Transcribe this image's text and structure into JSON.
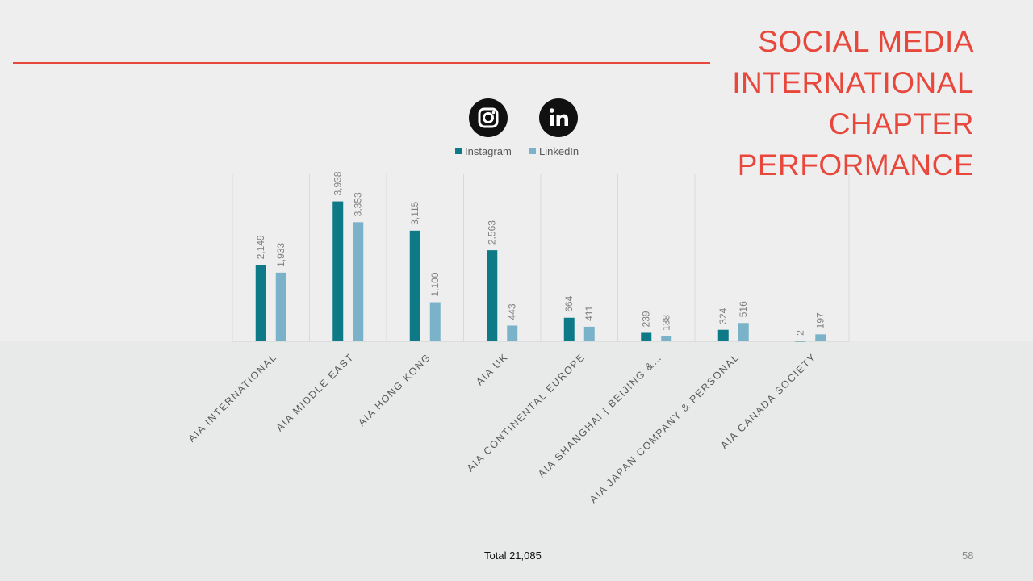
{
  "slide": {
    "title_lines": [
      "SOCIAL MEDIA",
      "INTERNATIONAL",
      "CHAPTER",
      "PERFORMANCE"
    ],
    "total_text": "Total 21,085",
    "page_number": "58",
    "accent_color": "#e8473c"
  },
  "icons": [
    "instagram-icon",
    "linkedin-icon"
  ],
  "chart_data": {
    "type": "bar",
    "categories": [
      "AIA INTERNATIONAL",
      "AIA MIDDLE EAST",
      "AIA HONG KONG",
      "AIA UK",
      "AIA CONTINENTAL EUROPE",
      "AIA SHANGHAI | BEIJING &…",
      "AIA JAPAN COMPANY & PERSONAL",
      "AIA CANADA SOCIETY"
    ],
    "series": [
      {
        "name": "Instagram",
        "color": "#0e7a87",
        "values": [
          2149,
          3938,
          3115,
          2563,
          664,
          239,
          324,
          2
        ]
      },
      {
        "name": "LinkedIn",
        "color": "#7ab3c9",
        "values": [
          1933,
          3353,
          1100,
          443,
          411,
          138,
          516,
          197
        ]
      }
    ],
    "data_labels": [
      [
        "2,149",
        "3,938",
        "3,115",
        "2,563",
        "664",
        "239",
        "324",
        "2"
      ],
      [
        "1,933",
        "3,353",
        "1,100",
        "443",
        "411",
        "138",
        "516",
        "197"
      ]
    ],
    "ylim": [
      0,
      4700
    ],
    "legend_position": "top",
    "grid": "vertical"
  }
}
